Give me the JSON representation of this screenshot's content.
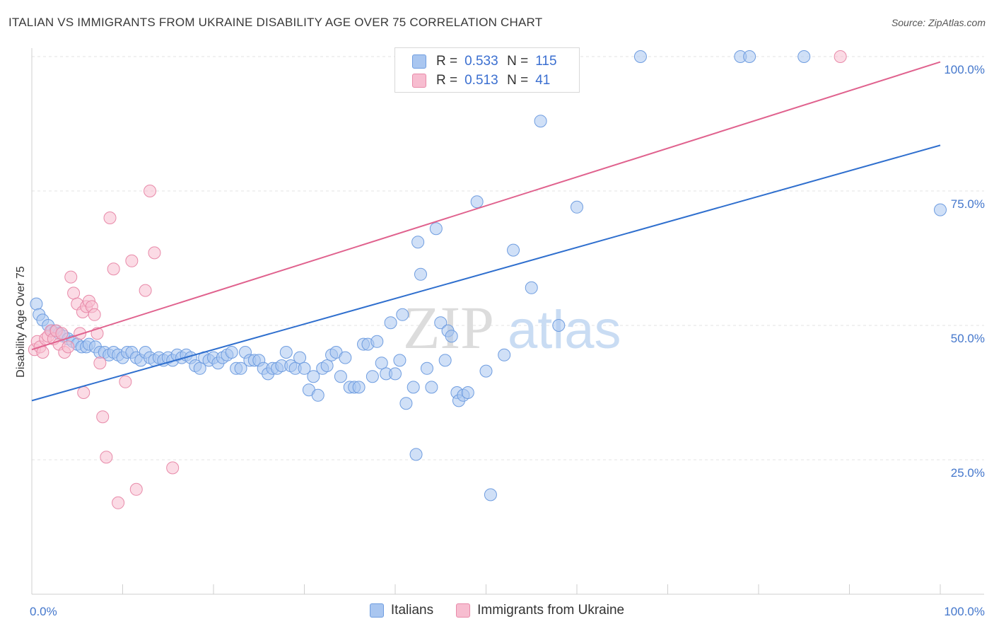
{
  "title": "ITALIAN VS IMMIGRANTS FROM UKRAINE DISABILITY AGE OVER 75 CORRELATION CHART",
  "source": "Source: ZipAtlas.com",
  "watermark": {
    "zip": "ZIP",
    "atlas": "atlas"
  },
  "legend": {
    "r_label": "R =",
    "n_label": "N =",
    "rows": [
      {
        "r": "0.533",
        "n": "115",
        "fill": "#a9c6f0",
        "stroke": "#6f9de0"
      },
      {
        "r": "0.513",
        "n": "41",
        "fill": "#f7bdd0",
        "stroke": "#e88aa9"
      }
    ]
  },
  "chart_data": {
    "type": "scatter",
    "title": "ITALIAN VS IMMIGRANTS FROM UKRAINE DISABILITY AGE OVER 75 CORRELATION CHART",
    "xlabel": "",
    "ylabel": "Disability Age Over 75",
    "xlim": [
      0,
      100
    ],
    "ylim": [
      0,
      100
    ],
    "x_tick_labels": [
      {
        "value": 0,
        "label": "0.0%"
      },
      {
        "value": 100,
        "label": "100.0%"
      }
    ],
    "y_tick_labels": [
      {
        "value": 25,
        "label": "25.0%"
      },
      {
        "value": 50,
        "label": "50.0%"
      },
      {
        "value": 75,
        "label": "75.0%"
      },
      {
        "value": 100,
        "label": "100.0%"
      }
    ],
    "series": [
      {
        "name": "Italians",
        "color": "#6f9de0",
        "fill": "#a9c6f0",
        "trend": {
          "x0": 0,
          "y0": 36,
          "x1": 100,
          "y1": 83.5,
          "color": "#2f6fce"
        },
        "points": [
          [
            0.5,
            54
          ],
          [
            0.8,
            52
          ],
          [
            1.2,
            51
          ],
          [
            1.8,
            50
          ],
          [
            2.2,
            49
          ],
          [
            2.6,
            49
          ],
          [
            3,
            48.5
          ],
          [
            3.5,
            48
          ],
          [
            4,
            47.5
          ],
          [
            4.5,
            47
          ],
          [
            5,
            46.5
          ],
          [
            5.5,
            46
          ],
          [
            6,
            46
          ],
          [
            6.3,
            46.5
          ],
          [
            7,
            46
          ],
          [
            7.5,
            45
          ],
          [
            8,
            45
          ],
          [
            8.5,
            44.5
          ],
          [
            9,
            45
          ],
          [
            9.5,
            44.5
          ],
          [
            10,
            44
          ],
          [
            10.5,
            45
          ],
          [
            11,
            45
          ],
          [
            11.5,
            44
          ],
          [
            12,
            43.5
          ],
          [
            12.5,
            45
          ],
          [
            13,
            44
          ],
          [
            13.5,
            43.5
          ],
          [
            14,
            44
          ],
          [
            14.5,
            43.5
          ],
          [
            15,
            44
          ],
          [
            15.5,
            43.5
          ],
          [
            16,
            44.5
          ],
          [
            16.5,
            44
          ],
          [
            17,
            44.5
          ],
          [
            17.5,
            44
          ],
          [
            18,
            42.5
          ],
          [
            18.5,
            42
          ],
          [
            19,
            44
          ],
          [
            19.5,
            43.5
          ],
          [
            20,
            44
          ],
          [
            20.5,
            43
          ],
          [
            21,
            44
          ],
          [
            21.5,
            44.5
          ],
          [
            22,
            45
          ],
          [
            22.5,
            42
          ],
          [
            23,
            42
          ],
          [
            23.5,
            45
          ],
          [
            24,
            43.5
          ],
          [
            24.5,
            43.5
          ],
          [
            25,
            43.5
          ],
          [
            25.5,
            42
          ],
          [
            26,
            41
          ],
          [
            26.5,
            42
          ],
          [
            27,
            42
          ],
          [
            27.5,
            42.5
          ],
          [
            28,
            45
          ],
          [
            28.5,
            42.5
          ],
          [
            29,
            42
          ],
          [
            29.5,
            44
          ],
          [
            30,
            42
          ],
          [
            30.5,
            38
          ],
          [
            31,
            40.5
          ],
          [
            31.5,
            37
          ],
          [
            32,
            42
          ],
          [
            32.5,
            42.5
          ],
          [
            33,
            44.5
          ],
          [
            33.5,
            45
          ],
          [
            34,
            40.5
          ],
          [
            34.5,
            44
          ],
          [
            35,
            38.5
          ],
          [
            35.5,
            38.5
          ],
          [
            36,
            38.5
          ],
          [
            36.5,
            46.5
          ],
          [
            37,
            46.5
          ],
          [
            37.5,
            40.5
          ],
          [
            38,
            47
          ],
          [
            38.5,
            43
          ],
          [
            39,
            41
          ],
          [
            39.5,
            50.5
          ],
          [
            40,
            41
          ],
          [
            40.5,
            43.5
          ],
          [
            40.8,
            52
          ],
          [
            41.2,
            35.5
          ],
          [
            42,
            38.5
          ],
          [
            42.3,
            26
          ],
          [
            42.8,
            59.5
          ],
          [
            42.5,
            65.5
          ],
          [
            43.5,
            42
          ],
          [
            44,
            38.5
          ],
          [
            44.5,
            68
          ],
          [
            45,
            50.5
          ],
          [
            45.5,
            43.5
          ],
          [
            45.8,
            49
          ],
          [
            46.2,
            48
          ],
          [
            46.8,
            37.5
          ],
          [
            47,
            36
          ],
          [
            47.5,
            37
          ],
          [
            48,
            37.5
          ],
          [
            49,
            73
          ],
          [
            50,
            41.5
          ],
          [
            50.5,
            18.5
          ],
          [
            52,
            44.5
          ],
          [
            53,
            64
          ],
          [
            55,
            57
          ],
          [
            56,
            88
          ],
          [
            58,
            50
          ],
          [
            60,
            72
          ],
          [
            67,
            100
          ],
          [
            78,
            100
          ],
          [
            79,
            100
          ],
          [
            85,
            100
          ],
          [
            100,
            71.5
          ]
        ]
      },
      {
        "name": "Immigrants from Ukraine",
        "color": "#e88aa9",
        "fill": "#f7bdd0",
        "trend": {
          "x0": 0,
          "y0": 45.5,
          "x1": 100,
          "y1": 99,
          "color": "#e0628e"
        },
        "points": [
          [
            0.3,
            45.5
          ],
          [
            0.6,
            47
          ],
          [
            0.9,
            46
          ],
          [
            1.2,
            45
          ],
          [
            1.5,
            47.5
          ],
          [
            1.8,
            48
          ],
          [
            2.1,
            49
          ],
          [
            2.4,
            47.5
          ],
          [
            2.7,
            49
          ],
          [
            3,
            46.5
          ],
          [
            3.3,
            48.5
          ],
          [
            3.6,
            45
          ],
          [
            4,
            46
          ],
          [
            4.3,
            59
          ],
          [
            4.6,
            56
          ],
          [
            5,
            54
          ],
          [
            5.3,
            48.5
          ],
          [
            5.6,
            52.5
          ],
          [
            6,
            53.5
          ],
          [
            6.3,
            54.5
          ],
          [
            6.6,
            53.5
          ],
          [
            6.9,
            52
          ],
          [
            7.2,
            48.5
          ],
          [
            7.5,
            43
          ],
          [
            5.7,
            37.5
          ],
          [
            7.8,
            33
          ],
          [
            8.2,
            25.5
          ],
          [
            8.6,
            70
          ],
          [
            9,
            60.5
          ],
          [
            9.5,
            17
          ],
          [
            10.3,
            39.5
          ],
          [
            11,
            62
          ],
          [
            11.5,
            19.5
          ],
          [
            12.5,
            56.5
          ],
          [
            13,
            75
          ],
          [
            13.5,
            63.5
          ],
          [
            15.5,
            23.5
          ],
          [
            89,
            100
          ]
        ]
      }
    ]
  },
  "bottom_legend": [
    {
      "label": "Italians",
      "fill": "#a9c6f0",
      "stroke": "#6f9de0"
    },
    {
      "label": "Immigrants from Ukraine",
      "fill": "#f7bdd0",
      "stroke": "#e88aa9"
    }
  ]
}
